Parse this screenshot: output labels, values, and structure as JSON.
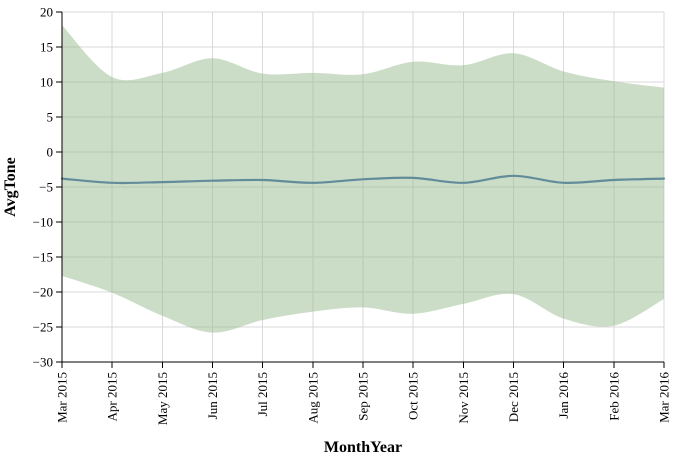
{
  "chart_data": {
    "type": "area",
    "title": "",
    "xlabel": "MonthYear",
    "ylabel": "AvgTone",
    "categories": [
      "Mar 2015",
      "Apr 2015",
      "May 2015",
      "Jun 2015",
      "Jul 2015",
      "Aug 2015",
      "Sep 2015",
      "Oct 2015",
      "Nov 2015",
      "Dec 2015",
      "Jan 2016",
      "Feb 2016",
      "Mar 2016"
    ],
    "ylim": [
      -30,
      20
    ],
    "yticks": [
      20,
      15,
      10,
      5,
      0,
      -5,
      -10,
      -15,
      -20,
      -25,
      -30
    ],
    "ytick_labels": [
      "20",
      "15",
      "10",
      "5",
      "0",
      "−5",
      "−10",
      "−15",
      "−20",
      "−25",
      "−30"
    ],
    "grid": true,
    "legend": "none",
    "series": [
      {
        "name": "band_upper",
        "values": [
          18.1,
          10.7,
          11.3,
          13.4,
          11.2,
          11.3,
          11.1,
          12.9,
          12.4,
          14.1,
          11.5,
          10.1,
          9.2
        ]
      },
      {
        "name": "avg_tone_line",
        "values": [
          -3.8,
          -4.4,
          -4.3,
          -4.1,
          -4.0,
          -4.4,
          -3.9,
          -3.7,
          -4.4,
          -3.4,
          -4.4,
          -4.0,
          -3.8
        ]
      },
      {
        "name": "band_lower",
        "values": [
          -17.7,
          -20.1,
          -23.4,
          -25.8,
          -24.0,
          -22.8,
          -22.2,
          -23.1,
          -21.7,
          -20.3,
          -23.8,
          -24.8,
          -21.0
        ]
      }
    ],
    "colors": {
      "band_fill": "#97b98f",
      "band_opacity": "0.5",
      "line": "#638c9b",
      "grid": "#d9d9d9",
      "axis": "#000000",
      "text": "#000000",
      "background": "#ffffff"
    }
  }
}
